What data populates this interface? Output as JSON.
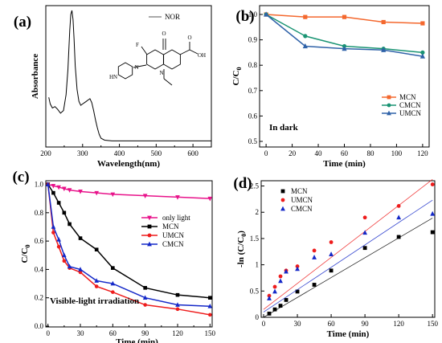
{
  "chart_data": [
    {
      "panel": "(a)",
      "type": "line",
      "xlabel": "Wavelength(nm)",
      "ylabel": "Absorbance",
      "xlim": [
        200,
        650
      ],
      "xticks": [
        200,
        300,
        400,
        500,
        600
      ],
      "legend": [
        "NOR"
      ],
      "legend_position": "top-right",
      "series": [
        {
          "name": "NOR",
          "color": "#000000",
          "x": [
            208,
            212,
            218,
            225,
            232,
            240,
            248,
            255,
            260,
            265,
            268,
            271,
            274,
            277,
            280,
            285,
            290,
            295,
            300,
            305,
            310,
            315,
            320,
            325,
            330,
            335,
            340,
            345,
            350,
            360,
            380,
            400,
            450,
            500,
            550,
            600,
            650
          ],
          "y": [
            0.34,
            0.29,
            0.26,
            0.27,
            0.25,
            0.22,
            0.24,
            0.36,
            0.55,
            0.85,
            0.97,
            1.0,
            0.93,
            0.78,
            0.58,
            0.4,
            0.31,
            0.28,
            0.29,
            0.3,
            0.31,
            0.32,
            0.33,
            0.3,
            0.24,
            0.17,
            0.11,
            0.06,
            0.03,
            0.015,
            0.01,
            0.01,
            0.01,
            0.01,
            0.01,
            0.01,
            0.01
          ]
        }
      ],
      "molecule_labels": [
        "F",
        "O",
        "O",
        "OH",
        "N",
        "N",
        "HN"
      ]
    },
    {
      "panel": "(b)",
      "type": "line",
      "xlabel": "Time (min)",
      "ylabel": "C/C0",
      "xlim": [
        -5,
        125
      ],
      "ylim": [
        0.5,
        1.0
      ],
      "xticks": [
        0,
        20,
        40,
        60,
        80,
        100,
        120
      ],
      "yticks": [
        0.5,
        0.6,
        0.7,
        0.8,
        0.9,
        1.0
      ],
      "ytick_labels": [
        "0.5",
        "0.6",
        "0.7",
        "0.8",
        "0.9",
        "1.0"
      ],
      "annotation": "In dark",
      "legend_position": "center-right",
      "series": [
        {
          "name": "MCN",
          "color": "#f4682e",
          "marker": "square",
          "x": [
            0,
            30,
            60,
            90,
            120
          ],
          "y": [
            1.0,
            0.99,
            0.99,
            0.97,
            0.965
          ]
        },
        {
          "name": "CMCN",
          "color": "#1a9473",
          "marker": "circle",
          "x": [
            0,
            30,
            60,
            90,
            120
          ],
          "y": [
            1.0,
            0.915,
            0.875,
            0.865,
            0.85
          ]
        },
        {
          "name": "UMCN",
          "color": "#2f62a8",
          "marker": "triangle",
          "x": [
            0,
            30,
            60,
            90,
            120
          ],
          "y": [
            1.0,
            0.875,
            0.865,
            0.86,
            0.835
          ]
        }
      ]
    },
    {
      "panel": "(c)",
      "type": "line",
      "xlabel": "Time (min)",
      "ylabel": "C/C0",
      "xlim": [
        -2,
        152
      ],
      "ylim": [
        0.0,
        1.02
      ],
      "xticks": [
        0,
        15,
        30,
        45,
        60,
        75,
        90,
        105,
        120,
        135,
        150
      ],
      "xtick_labels": [
        "0",
        "30",
        "60",
        "90",
        "120",
        "150"
      ],
      "yticks": [
        0.0,
        0.2,
        0.4,
        0.6,
        0.8,
        1.0
      ],
      "ytick_labels": [
        "0.0",
        "0.2",
        "0.4",
        "0.6",
        "0.8",
        "1.0"
      ],
      "annotation": "Visible-light irradiation",
      "legend_position": "center-right",
      "series": [
        {
          "name": "only light",
          "color": "#e8128a",
          "marker": "triangle-down",
          "x": [
            0,
            5,
            10,
            15,
            20,
            30,
            45,
            60,
            90,
            120,
            150
          ],
          "y": [
            1.0,
            0.99,
            0.98,
            0.97,
            0.96,
            0.95,
            0.94,
            0.93,
            0.92,
            0.91,
            0.9
          ]
        },
        {
          "name": "MCN",
          "color": "#000000",
          "marker": "square",
          "x": [
            0,
            5,
            10,
            15,
            20,
            30,
            45,
            60,
            90,
            120,
            150
          ],
          "y": [
            1.0,
            0.94,
            0.87,
            0.8,
            0.72,
            0.62,
            0.54,
            0.41,
            0.27,
            0.22,
            0.2
          ]
        },
        {
          "name": "UMCN",
          "color": "#ee1c1c",
          "marker": "circle",
          "x": [
            0,
            5,
            10,
            15,
            20,
            30,
            45,
            60,
            90,
            120,
            150
          ],
          "y": [
            1.0,
            0.66,
            0.56,
            0.46,
            0.41,
            0.38,
            0.28,
            0.24,
            0.15,
            0.12,
            0.08
          ]
        },
        {
          "name": "CMCN",
          "color": "#1428c8",
          "marker": "triangle",
          "x": [
            0,
            5,
            10,
            15,
            20,
            30,
            45,
            60,
            90,
            120,
            150
          ],
          "y": [
            1.0,
            0.7,
            0.61,
            0.5,
            0.42,
            0.4,
            0.32,
            0.3,
            0.2,
            0.15,
            0.14
          ]
        }
      ]
    },
    {
      "panel": "(d)",
      "type": "scatter",
      "xlabel": "Time (min)",
      "ylabel": "-ln (C/C0)",
      "xlim": [
        0,
        152
      ],
      "ylim": [
        0,
        2.6
      ],
      "xticks": [
        0,
        30,
        60,
        90,
        120,
        150
      ],
      "yticks": [
        0.0,
        0.5,
        1.0,
        1.5,
        2.0,
        2.5
      ],
      "ytick_labels": [
        "0",
        "0.5",
        "1",
        "1.5",
        "2",
        "2.5"
      ],
      "legend_position": "top-left",
      "series": [
        {
          "name": "MCN",
          "color": "#000000",
          "marker": "square",
          "x": [
            5,
            10,
            15,
            20,
            30,
            45,
            60,
            90,
            120,
            150
          ],
          "y": [
            0.07,
            0.15,
            0.22,
            0.33,
            0.49,
            0.62,
            0.89,
            1.32,
            1.53,
            1.62
          ],
          "fit": [
            0.0,
            0.0126
          ]
        },
        {
          "name": "UMCN",
          "color": "#ee1c1c",
          "marker": "circle",
          "x": [
            5,
            10,
            15,
            20,
            30,
            45,
            60,
            90,
            120,
            150
          ],
          "y": [
            0.41,
            0.58,
            0.78,
            0.89,
            0.97,
            1.27,
            1.43,
            1.9,
            2.12,
            2.53
          ],
          "fit": [
            0.15,
            0.0165
          ]
        },
        {
          "name": "CMCN",
          "color": "#1428c8",
          "marker": "triangle",
          "x": [
            5,
            10,
            15,
            20,
            30,
            45,
            60,
            90,
            120,
            150
          ],
          "y": [
            0.36,
            0.49,
            0.69,
            0.87,
            0.92,
            1.14,
            1.2,
            1.61,
            1.9,
            1.97
          ],
          "fit": [
            0.1,
            0.0142
          ]
        }
      ]
    }
  ]
}
